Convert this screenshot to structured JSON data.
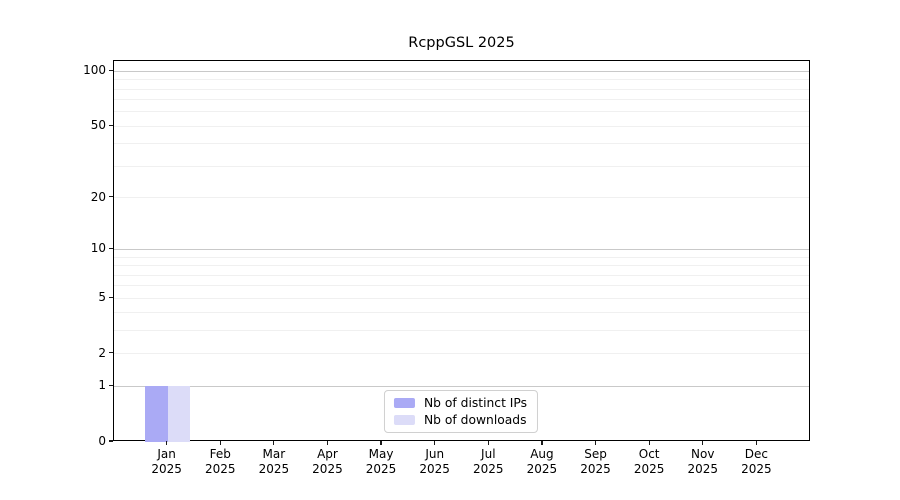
{
  "title": "RcppGSL 2025",
  "colors": {
    "distinct_ips_bar": "#aaaaf5",
    "downloads_bar": "#dcdcf8",
    "major_gridline": "#c9c9c9",
    "minor_gridline": "#f0f0f0",
    "axis_spine": "#000000",
    "legend_border": "#d0d0d0"
  },
  "legend": {
    "items": [
      {
        "label": "Nb of distinct IPs",
        "color": "#aaaaf5"
      },
      {
        "label": "Nb of downloads",
        "color": "#dcdcf8"
      }
    ]
  },
  "chart_data": {
    "type": "bar",
    "title": "RcppGSL 2025",
    "categories": [
      "Jan 2025",
      "Feb 2025",
      "Mar 2025",
      "Apr 2025",
      "May 2025",
      "Jun 2025",
      "Jul 2025",
      "Aug 2025",
      "Sep 2025",
      "Oct 2025",
      "Nov 2025",
      "Dec 2025"
    ],
    "x_tick_labels": [
      [
        "Jan",
        "2025"
      ],
      [
        "Feb",
        "2025"
      ],
      [
        "Mar",
        "2025"
      ],
      [
        "Apr",
        "2025"
      ],
      [
        "May",
        "2025"
      ],
      [
        "Jun",
        "2025"
      ],
      [
        "Jul",
        "2025"
      ],
      [
        "Aug",
        "2025"
      ],
      [
        "Sep",
        "2025"
      ],
      [
        "Oct",
        "2025"
      ],
      [
        "Nov",
        "2025"
      ],
      [
        "Dec",
        "2025"
      ]
    ],
    "series": [
      {
        "name": "Nb of distinct IPs",
        "color": "#aaaaf5",
        "values": [
          1,
          0,
          0,
          0,
          0,
          0,
          0,
          0,
          0,
          0,
          0,
          0
        ]
      },
      {
        "name": "Nb of downloads",
        "color": "#dcdcf8",
        "values": [
          1,
          0,
          0,
          0,
          0,
          0,
          0,
          0,
          0,
          0,
          0,
          0
        ]
      }
    ],
    "xlabel": "",
    "ylabel": "",
    "yscale": "log1p",
    "ylim": [
      0,
      114
    ],
    "yticks": [
      0,
      1,
      2,
      5,
      10,
      20,
      50,
      100
    ],
    "major_gridlines": [
      1,
      10,
      100
    ],
    "minor_gridlines": [
      2,
      3,
      4,
      5,
      6,
      7,
      8,
      9,
      20,
      30,
      40,
      50,
      60,
      70,
      80,
      90
    ],
    "grid": true,
    "legend_position": "lower center"
  }
}
